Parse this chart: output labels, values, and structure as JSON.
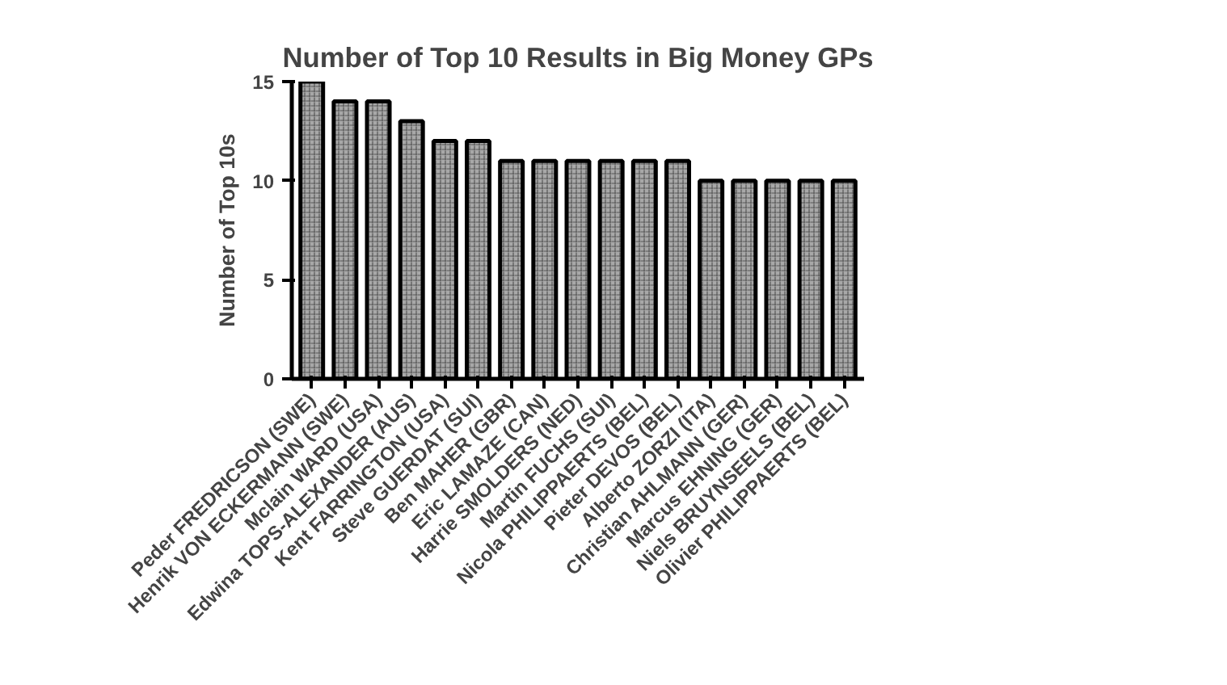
{
  "chart_data": {
    "type": "bar",
    "title": "Number of Top 10 Results in Big Money GPs",
    "ylabel": "Number of Top 10s",
    "categories": [
      "Peder FREDRICSON (SWE)",
      "Henrik VON ECKERMANN (SWE)",
      "Mclain WARD (USA)",
      "Edwina TOPS-ALEXANDER (AUS)",
      "Kent FARRINGTON (USA)",
      "Steve GUERDAT (SUI)",
      "Ben MAHER (GBR)",
      "Eric LAMAZE (CAN)",
      "Harrie SMOLDERS (NED)",
      "Martin FUCHS (SUI)",
      "Nicola PHILIPPAERTS (BEL)",
      "Pieter DEVOS (BEL)",
      "Alberto ZORZI (ITA)",
      "Christian AHLMANN (GER)",
      "Marcus EHNING (GER)",
      "Niels BRUYNSEELS (BEL)",
      "Olivier PHILIPPAERTS (BEL)"
    ],
    "values": [
      15,
      14,
      14,
      13,
      12,
      12,
      11,
      11,
      11,
      11,
      11,
      11,
      10,
      10,
      10,
      10,
      10
    ],
    "color": "#a8a8a8",
    "ylim": [
      0,
      15
    ],
    "yticks": [
      0,
      5,
      10,
      15
    ],
    "grid": false
  }
}
